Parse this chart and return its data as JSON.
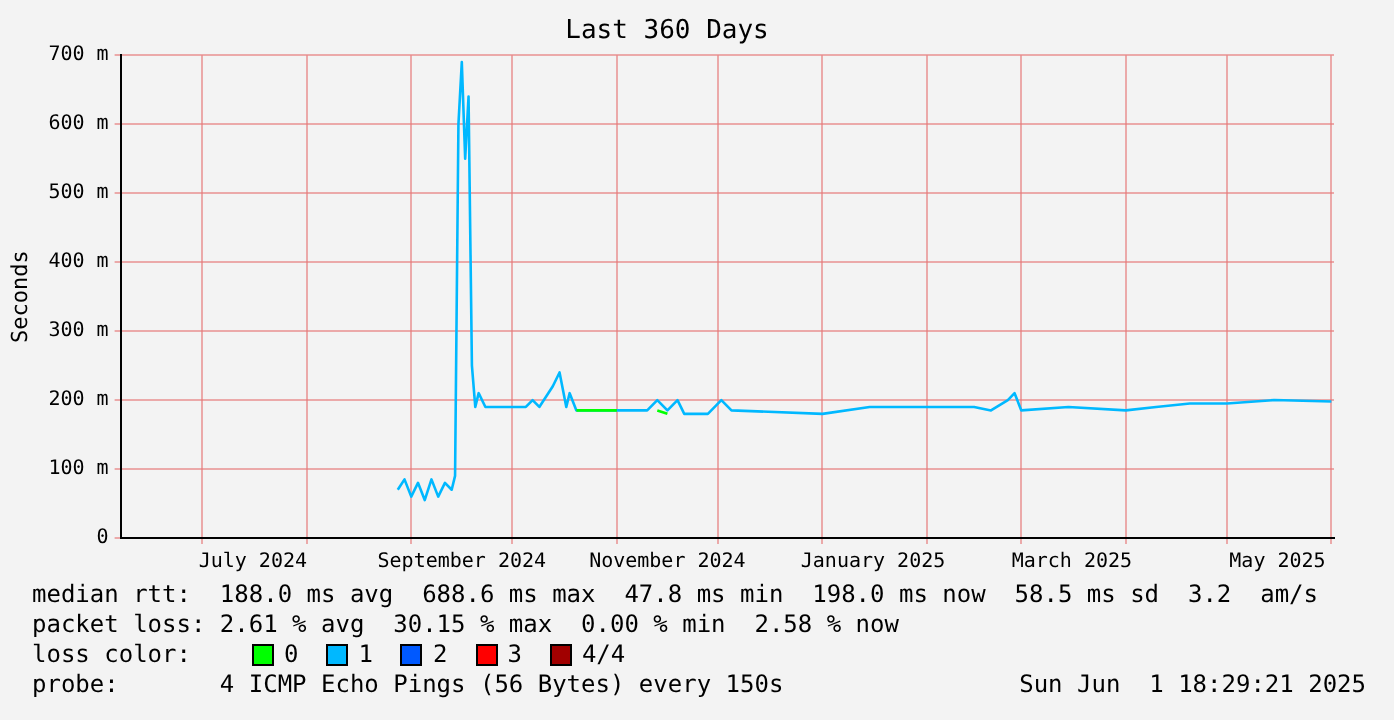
{
  "chart_data": {
    "type": "line",
    "title": "Last 360 Days",
    "ylabel": "Seconds",
    "x": [
      "2024-08-28",
      "2024-08-30",
      "2024-09-01",
      "2024-09-03",
      "2024-09-05",
      "2024-09-07",
      "2024-09-09",
      "2024-09-11",
      "2024-09-13",
      "2024-09-14",
      "2024-09-15",
      "2024-09-16",
      "2024-09-17",
      "2024-09-18",
      "2024-09-19",
      "2024-09-20",
      "2024-09-21",
      "2024-09-23",
      "2024-09-30",
      "2024-10-05",
      "2024-10-07",
      "2024-10-09",
      "2024-10-13",
      "2024-10-15",
      "2024-10-17",
      "2024-10-18",
      "2024-10-20",
      "2024-11-01",
      "2024-11-10",
      "2024-11-13",
      "2024-11-16",
      "2024-11-19",
      "2024-11-21",
      "2024-11-28",
      "2024-12-02",
      "2024-12-05",
      "2025-01-01",
      "2025-01-15",
      "2025-02-01",
      "2025-02-15",
      "2025-02-20",
      "2025-02-25",
      "2025-02-27",
      "2025-03-01",
      "2025-03-15",
      "2025-04-01",
      "2025-04-10",
      "2025-04-20",
      "2025-05-01",
      "2025-05-15",
      "2025-06-01"
    ],
    "series": [
      {
        "name": "0",
        "color": "#00ff00",
        "values": [
          null,
          null,
          null,
          null,
          null,
          null,
          null,
          null,
          null,
          null,
          null,
          null,
          null,
          null,
          null,
          null,
          null,
          null,
          null,
          null,
          null,
          null,
          null,
          null,
          null,
          null,
          185,
          185,
          null,
          185,
          180,
          null,
          null,
          null,
          null,
          null,
          null,
          null,
          null,
          null,
          null,
          null,
          null,
          null,
          null,
          null,
          null,
          null,
          null,
          null,
          null
        ]
      },
      {
        "name": "1",
        "color": "#00b8ff",
        "values": [
          70,
          85,
          60,
          80,
          55,
          85,
          60,
          80,
          70,
          90,
          600,
          690,
          550,
          640,
          250,
          190,
          210,
          190,
          190,
          190,
          200,
          190,
          220,
          240,
          190,
          210,
          185,
          185,
          185,
          200,
          185,
          200,
          180,
          180,
          200,
          185,
          180,
          190,
          190,
          190,
          185,
          200,
          210,
          185,
          190,
          185,
          190,
          195,
          195,
          200,
          198
        ]
      },
      {
        "name": "2",
        "color": "#0059ff",
        "values": [
          null,
          null,
          null,
          null,
          null,
          null,
          null,
          null,
          null,
          null,
          null,
          null,
          null,
          null,
          null,
          null,
          null,
          null,
          null,
          null,
          null,
          null,
          null,
          null,
          null,
          null,
          null,
          null,
          null,
          null,
          null,
          null,
          null,
          null,
          null,
          null,
          null,
          null,
          null,
          null,
          null,
          null,
          null,
          null,
          null,
          null,
          null,
          null,
          null,
          null,
          null
        ]
      },
      {
        "name": "3",
        "color": "#ff0000",
        "values": [
          null,
          null,
          null,
          null,
          null,
          null,
          null,
          null,
          null,
          null,
          null,
          null,
          null,
          null,
          null,
          null,
          null,
          null,
          null,
          null,
          null,
          null,
          null,
          null,
          null,
          null,
          null,
          null,
          null,
          null,
          null,
          null,
          null,
          null,
          null,
          null,
          null,
          null,
          null,
          null,
          null,
          null,
          null,
          null,
          null,
          null,
          null,
          null,
          null,
          null,
          null
        ]
      },
      {
        "name": "4/4",
        "color": "#a10000",
        "values": [
          null,
          null,
          null,
          null,
          null,
          null,
          null,
          null,
          null,
          null,
          null,
          null,
          null,
          null,
          null,
          null,
          null,
          null,
          null,
          null,
          null,
          null,
          null,
          null,
          null,
          null,
          null,
          null,
          null,
          null,
          null,
          null,
          null,
          null,
          null,
          null,
          null,
          null,
          null,
          null,
          null,
          null,
          null,
          null,
          null,
          null,
          null,
          null,
          null,
          null,
          null
        ]
      }
    ],
    "legend_title": "loss color:",
    "legend": "bottom",
    "xlim": [
      "2024-06-06T18:29",
      "2025-06-01T18:29"
    ],
    "xticks": [
      {
        "value": "2024-07-01",
        "label": null
      },
      {
        "value": "2024-07-16",
        "label": "July 2024"
      },
      {
        "value": "2024-08-01",
        "label": null
      },
      {
        "value": "2024-09-01",
        "label": null
      },
      {
        "value": "2024-09-16",
        "label": "September 2024"
      },
      {
        "value": "2024-10-01",
        "label": null
      },
      {
        "value": "2024-11-01",
        "label": null
      },
      {
        "value": "2024-11-16",
        "label": "November 2024"
      },
      {
        "value": "2024-12-01",
        "label": null
      },
      {
        "value": "2025-01-01",
        "label": null
      },
      {
        "value": "2025-01-16",
        "label": "January 2025"
      },
      {
        "value": "2025-02-01",
        "label": null
      },
      {
        "value": "2025-03-01",
        "label": null
      },
      {
        "value": "2025-03-16",
        "label": "March 2025"
      },
      {
        "value": "2025-04-01",
        "label": null
      },
      {
        "value": "2025-05-01",
        "label": null
      },
      {
        "value": "2025-05-16",
        "label": "May 2025"
      },
      {
        "value": "2025-06-01",
        "label": null
      }
    ],
    "ylim": [
      0,
      700
    ],
    "yticks": [
      0,
      {
        "value": 100,
        "label": "100 m"
      },
      {
        "value": 200,
        "label": "200 m"
      },
      {
        "value": 300,
        "label": "300 m"
      },
      {
        "value": 400,
        "label": "400 m"
      },
      {
        "value": 500,
        "label": "500 m"
      },
      {
        "value": 600,
        "label": "600 m"
      },
      {
        "value": 700,
        "label": "700 m"
      }
    ],
    "grid": true,
    "marker": "none",
    "line_style": "solid",
    "annotations": [
      "median rtt:  188.0 ms avg  688.6 ms max  47.8 ms min  198.0 ms now  58.5 ms sd  3.2  am/s",
      "packet loss: 2.61 % avg  30.15 % max  0.00 % min  2.58 % now",
      "probe:       4 ICMP Echo Pings (56 Bytes) every 150s",
      "Sun Jun  1 18:29:21 2025"
    ]
  }
}
